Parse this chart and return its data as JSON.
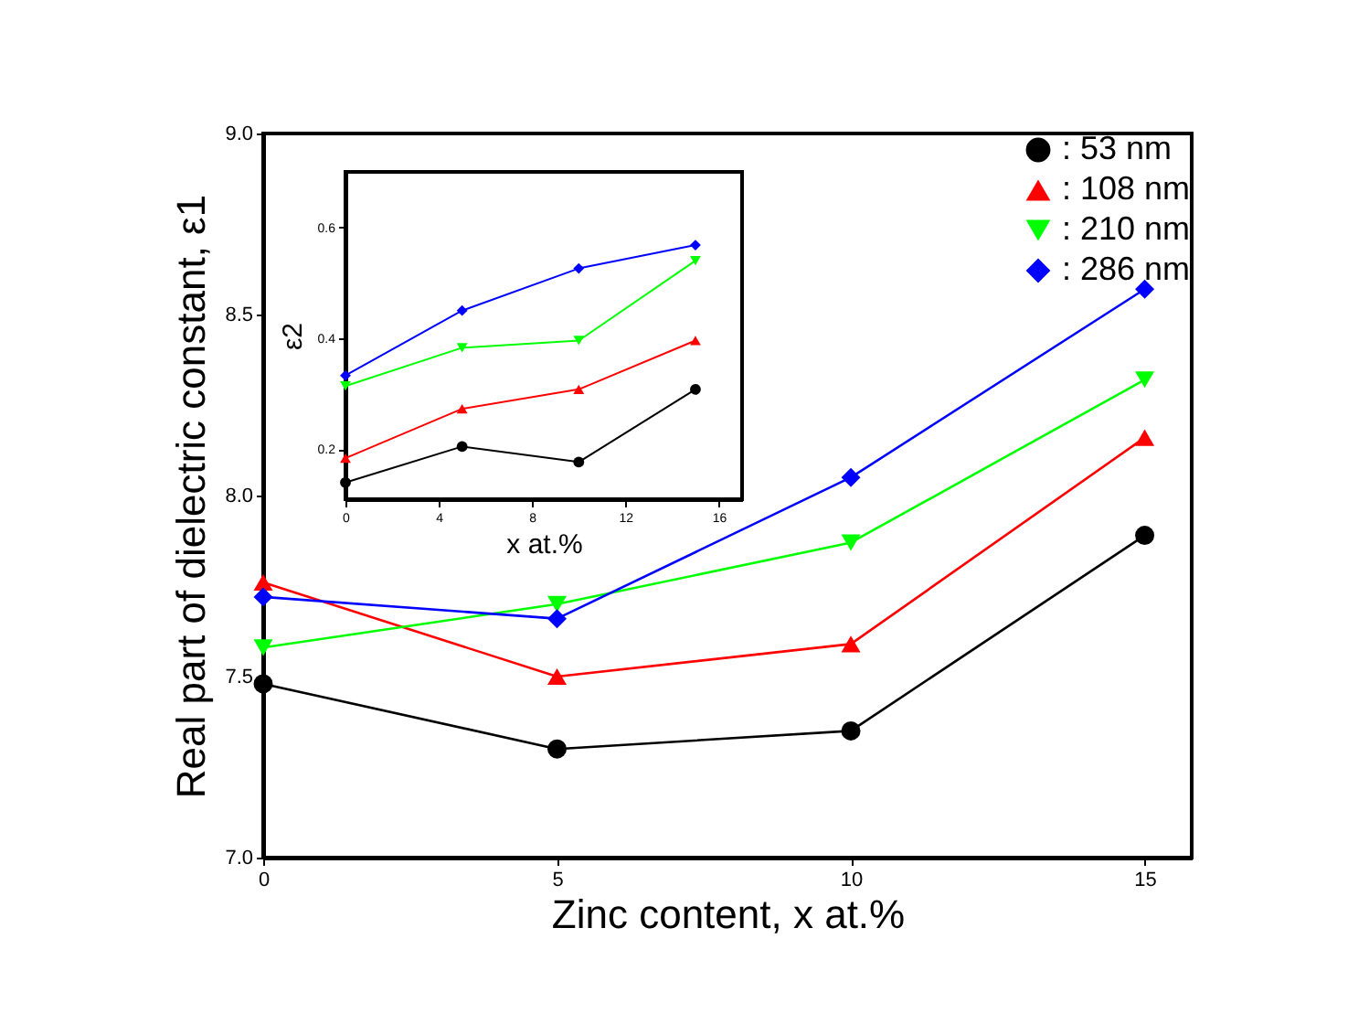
{
  "chart_data": [
    {
      "type": "line",
      "xlabel": "Zinc content, x at.%",
      "ylabel": "Real part of dielectric constant, ε1",
      "x": [
        0,
        5,
        10,
        15
      ],
      "xlim": [
        0,
        15.8
      ],
      "xticks": [
        0,
        5,
        10,
        15
      ],
      "ylim": [
        7,
        9
      ],
      "yticks": [
        {
          "value": 7,
          "label": "7.0"
        },
        {
          "value": 7.5,
          "label": "7.5"
        },
        {
          "value": 8,
          "label": "8.0"
        },
        {
          "value": 8.5,
          "label": "8.5"
        },
        {
          "value": 9,
          "label": "9.0"
        }
      ],
      "grid": false,
      "legend": "top right",
      "series": [
        {
          "name": ": 53 nm",
          "color": "#000000",
          "marker": "circle",
          "values": [
            7.48,
            7.3,
            7.35,
            7.89
          ]
        },
        {
          "name": ": 108 nm",
          "color": "#ff0000",
          "marker": "triangle",
          "values": [
            7.76,
            7.5,
            7.59,
            8.16
          ]
        },
        {
          "name": ": 210 nm",
          "color": "#00ff00",
          "marker": "triangle-down",
          "values": [
            7.58,
            7.7,
            7.87,
            8.32
          ]
        },
        {
          "name": ": 286 nm",
          "color": "#0000ff",
          "marker": "diamond",
          "values": [
            7.72,
            7.66,
            8.05,
            8.57
          ]
        }
      ]
    },
    {
      "type": "line",
      "xlabel": "x at.%",
      "ylabel": "ε2",
      "x": [
        0,
        5,
        10,
        15
      ],
      "xlim": [
        0,
        17
      ],
      "xticks": [
        0,
        4,
        8,
        12,
        16
      ],
      "ylim": [
        0.11,
        0.7
      ],
      "yticks": [
        0.2,
        0.4,
        0.6
      ],
      "grid": false,
      "legend": false,
      "series": [
        {
          "color": "#000000",
          "marker": "circle",
          "values": [
            0.14,
            0.205,
            0.177,
            0.308
          ]
        },
        {
          "color": "#ff0000",
          "marker": "triangle",
          "values": [
            0.184,
            0.273,
            0.308,
            0.396
          ]
        },
        {
          "color": "#00ff00",
          "marker": "triangle-down",
          "values": [
            0.314,
            0.383,
            0.396,
            0.54
          ]
        },
        {
          "color": "#0000ff",
          "marker": "diamond",
          "values": [
            0.333,
            0.45,
            0.526,
            0.568
          ]
        }
      ]
    }
  ]
}
